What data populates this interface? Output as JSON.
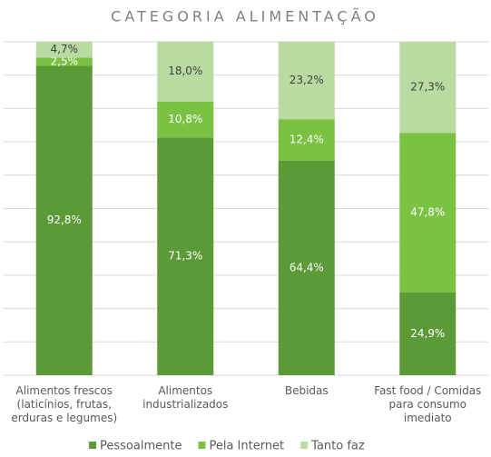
{
  "chart_data": {
    "type": "stacked_bar",
    "title": "CATEGORIA ALIMENTAÇÃO",
    "categories": [
      [
        "Alimentos frescos",
        "(laticínios, frutas,",
        "erduras e legumes)"
      ],
      [
        "Alimentos",
        "industrializados"
      ],
      [
        "Bebidas"
      ],
      [
        "Fast food / Comidas",
        "para consumo",
        "imediato"
      ]
    ],
    "series": [
      {
        "name": "Pessoalmente",
        "color": "#5b9a36",
        "values": [
          92.8,
          71.3,
          64.4,
          24.9
        ],
        "value_labels": [
          "92,8%",
          "71,3%",
          "64,4%",
          "24,9%"
        ]
      },
      {
        "name": "Pela Internet",
        "color": "#7bc144",
        "values": [
          2.5,
          10.8,
          12.4,
          47.8
        ],
        "value_labels": [
          "2,5%",
          "10,8%",
          "12,4%",
          "47,8%"
        ]
      },
      {
        "name": "Tanto faz",
        "color": "#b9dba1",
        "values": [
          4.7,
          18.0,
          23.2,
          27.3
        ],
        "value_labels": [
          "4,7%",
          "18,0%",
          "23,2%",
          "27,3%"
        ]
      }
    ],
    "ylim": [
      0,
      100
    ],
    "yticks": [
      0,
      10,
      20,
      30,
      40,
      50,
      60,
      70,
      80,
      90,
      100
    ],
    "grid": true,
    "show_ytick_labels": false,
    "legend": "bottom"
  }
}
